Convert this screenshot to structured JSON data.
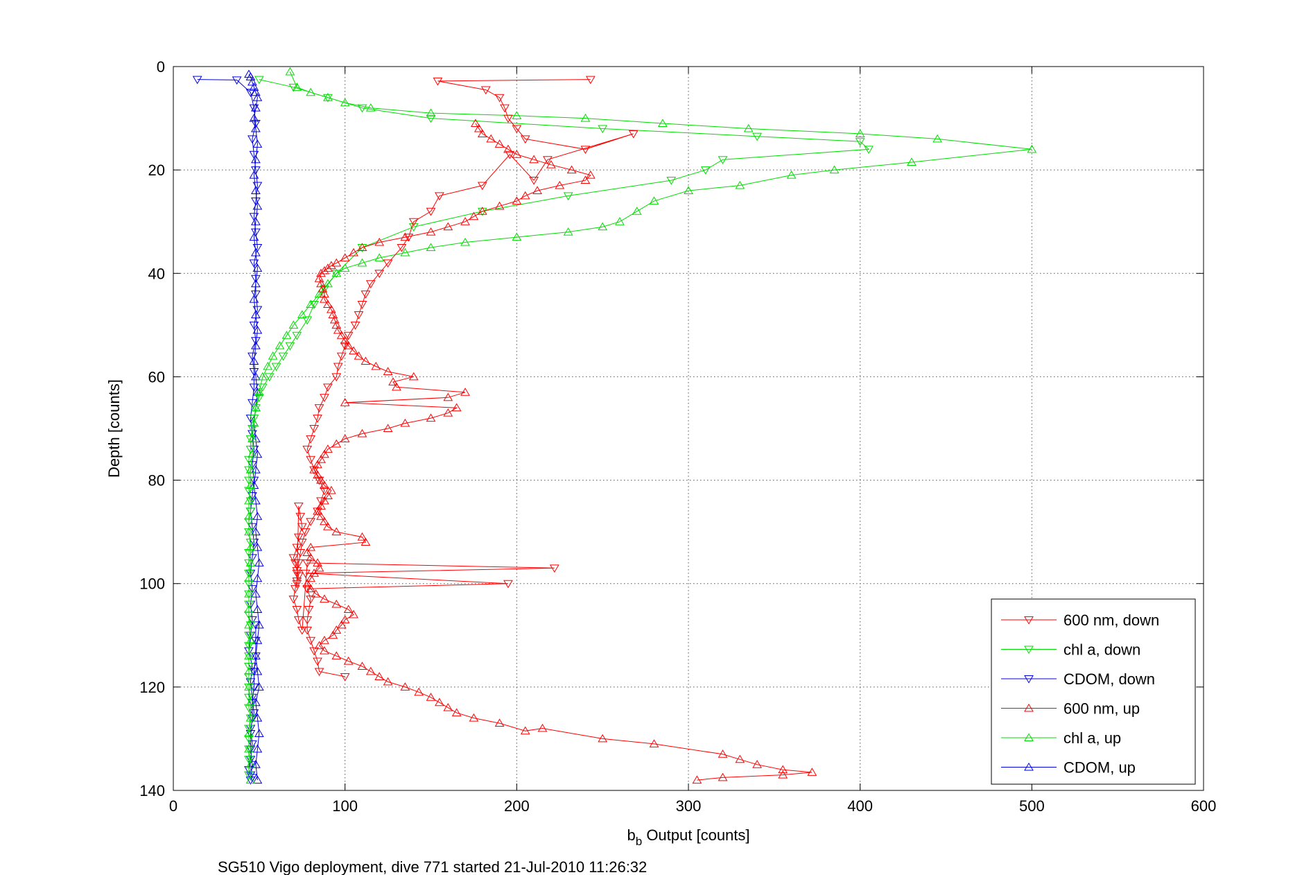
{
  "chart_data": {
    "type": "line",
    "title": "",
    "xlabel_main": "b",
    "xlabel_sub": "b",
    "xlabel_rest": " Output [counts]",
    "ylabel": "Depth [counts]",
    "caption": "SG510 Vigo deployment, dive 771 started 21-Jul-2010 11:26:32",
    "xlim": [
      0,
      600
    ],
    "ylim": [
      0,
      140
    ],
    "y_reversed": true,
    "grid": true,
    "legend_position": "bottom-right",
    "x_ticks": [
      "0",
      "100",
      "200",
      "300",
      "400",
      "500",
      "600"
    ],
    "y_ticks": [
      "0",
      "20",
      "40",
      "60",
      "80",
      "100",
      "120",
      "140"
    ],
    "series": [
      {
        "name": "600 nm, down",
        "color": "#ff0000",
        "marker": "triangle-down",
        "x": [
          243,
          154,
          182,
          190,
          193,
          195,
          200,
          205,
          240,
          268,
          218,
          210,
          196,
          180,
          155,
          150,
          140,
          137,
          133,
          125,
          120,
          115,
          112,
          110,
          108,
          106,
          102,
          100,
          98,
          96,
          95,
          90,
          88,
          85,
          84,
          82,
          80,
          78,
          80,
          82,
          85,
          88,
          86,
          84,
          80,
          77,
          75,
          74,
          73,
          72,
          72,
          73,
          74,
          75,
          73,
          72,
          70,
          71,
          72,
          73,
          72,
          71,
          70,
          72,
          73,
          75,
          78,
          222,
          77,
          195,
          78,
          80,
          79,
          78,
          78,
          80,
          82,
          84,
          85,
          100
        ],
        "y": [
          2.5,
          2.8,
          4.5,
          6,
          8,
          10,
          12,
          14,
          16,
          13,
          18,
          22,
          17,
          23,
          25,
          28,
          30,
          33,
          35,
          38,
          40,
          42,
          44,
          46,
          48,
          50,
          52,
          54,
          56,
          58,
          60,
          62,
          64,
          66,
          68,
          70,
          72,
          74,
          76,
          78,
          80,
          82,
          84,
          86,
          88,
          90,
          92,
          94,
          96,
          98,
          100,
          85,
          87,
          89,
          91,
          93,
          95,
          96,
          97.5,
          98.5,
          99.5,
          101,
          103,
          105,
          107,
          109,
          96,
          97,
          98,
          100,
          101,
          103,
          105,
          107,
          109,
          111,
          113,
          115,
          117,
          118
        ]
      },
      {
        "name": "chl a, down",
        "color": "#00dd00",
        "marker": "triangle-down",
        "x": [
          50,
          70,
          90,
          110,
          150,
          250,
          340,
          400,
          405,
          320,
          310,
          290,
          230,
          180,
          140,
          110,
          95,
          88,
          82,
          78,
          72,
          68,
          64,
          60,
          56,
          52,
          50,
          48,
          47,
          46,
          45,
          45,
          44,
          44,
          44,
          44,
          45,
          45,
          44,
          44,
          45,
          44,
          44,
          44,
          44,
          44,
          44,
          44,
          45,
          44,
          44,
          44,
          44,
          44,
          44,
          44,
          44,
          45,
          44,
          44,
          44,
          44,
          44
        ],
        "y": [
          2.5,
          4,
          6,
          8,
          10,
          12,
          13.5,
          14.5,
          16,
          18,
          20,
          22,
          25,
          28,
          31,
          35,
          40,
          43,
          46,
          49,
          52,
          54,
          56,
          58,
          60,
          62,
          64,
          66,
          68,
          70,
          72,
          74,
          76,
          78,
          80,
          82,
          84,
          86,
          88,
          90,
          92,
          94,
          96,
          98,
          100,
          102,
          104,
          106,
          108,
          110,
          112,
          114,
          116,
          118,
          120,
          122,
          124,
          126,
          128,
          130,
          132,
          134,
          137
        ]
      },
      {
        "name": "CDOM, down",
        "color": "#0000dd",
        "marker": "triangle-down",
        "x": [
          14,
          37,
          45,
          47,
          48,
          46,
          47,
          48,
          49,
          48,
          47,
          48,
          49,
          47,
          48,
          48,
          49,
          47,
          48,
          46,
          47,
          47,
          46,
          45,
          46,
          47,
          46,
          47,
          46,
          45,
          46,
          47,
          46,
          45,
          46,
          45,
          46,
          45,
          44,
          46,
          45,
          46,
          47,
          45,
          46,
          45,
          44,
          45,
          46,
          45,
          46,
          45,
          45,
          46,
          46,
          47,
          47,
          48,
          48,
          48
        ],
        "y": [
          2.5,
          2.6,
          5,
          8,
          11,
          14,
          17,
          20,
          23,
          26,
          29,
          32,
          35,
          38,
          41,
          44,
          47,
          50,
          53,
          56,
          59,
          62,
          65,
          68,
          71,
          74,
          77,
          80,
          83,
          86,
          89,
          92,
          95,
          98,
          101,
          104,
          107,
          110,
          113,
          116,
          119,
          122,
          125,
          128,
          131,
          134,
          136,
          137,
          137.5,
          138,
          135,
          132,
          129,
          126,
          123,
          120,
          117,
          114,
          111,
          108
        ]
      },
      {
        "name": "600 nm, up",
        "color": "#ff0000",
        "marker": "triangle-up",
        "x": [
          305,
          320,
          355,
          372,
          355,
          340,
          330,
          320,
          280,
          250,
          215,
          205,
          190,
          175,
          165,
          160,
          155,
          150,
          143,
          135,
          125,
          120,
          115,
          110,
          102,
          95,
          88,
          85,
          88,
          93,
          95,
          98,
          100,
          105,
          102,
          95,
          88,
          83,
          80,
          78,
          80,
          82,
          85,
          84,
          80,
          78,
          80,
          112,
          110,
          95,
          90,
          88,
          86,
          84,
          86,
          88,
          90,
          92,
          88,
          86,
          84,
          82,
          84,
          86,
          88,
          90,
          95,
          100,
          110,
          125,
          135,
          150,
          160,
          165,
          100,
          160,
          170,
          130,
          128,
          140,
          125,
          118,
          112,
          108,
          105,
          102,
          100,
          98,
          96,
          95,
          94,
          93,
          92,
          90,
          88,
          88,
          87,
          86,
          85,
          86,
          88,
          90,
          92,
          95,
          100,
          105,
          110,
          120,
          135,
          150,
          160,
          170,
          175,
          180,
          190,
          200,
          205,
          212,
          225,
          240,
          243,
          232,
          220,
          210,
          200,
          195,
          190,
          185,
          180,
          178,
          176
        ],
        "y": [
          138,
          137.5,
          137,
          136.5,
          136,
          135,
          134,
          133,
          131,
          130,
          128,
          128.5,
          127,
          126,
          125,
          124,
          123,
          122,
          121,
          120,
          119,
          118,
          117,
          116,
          115,
          114,
          113,
          112,
          111,
          110,
          109,
          108,
          107,
          106,
          105,
          104,
          103,
          102,
          101,
          100,
          99,
          98,
          97,
          96,
          95,
          94,
          93,
          92,
          91,
          90,
          89,
          88,
          87,
          86,
          85,
          84,
          83,
          82,
          81,
          80,
          79,
          78,
          77,
          76,
          75,
          74,
          73,
          72,
          71,
          70,
          69,
          68,
          67,
          66,
          65,
          64,
          63,
          62,
          61,
          60,
          59,
          58,
          57,
          56,
          55,
          54,
          53,
          52,
          51,
          50,
          49,
          48,
          47,
          46,
          45,
          44,
          43,
          42,
          41,
          40,
          39.5,
          39,
          38.5,
          38,
          37,
          36,
          35,
          34,
          33,
          32,
          31,
          30,
          29,
          28,
          27,
          26,
          25,
          24,
          23,
          22,
          21,
          20,
          19,
          18,
          17,
          16,
          15,
          14,
          13,
          12,
          11
        ]
      },
      {
        "name": "chl a, up",
        "color": "#00dd00",
        "marker": "triangle-up",
        "x": [
          45,
          45,
          44,
          44,
          45,
          45,
          44,
          44,
          44,
          45,
          44,
          44,
          44,
          44,
          45,
          45,
          44,
          44,
          44,
          45,
          45,
          46,
          46,
          47,
          48,
          50,
          52,
          55,
          58,
          62,
          66,
          70,
          75,
          80,
          85,
          90,
          95,
          100,
          110,
          120,
          135,
          150,
          170,
          200,
          230,
          250,
          260,
          270,
          280,
          300,
          330,
          360,
          385,
          430,
          500,
          445,
          400,
          335,
          285,
          240,
          200,
          150,
          115,
          100,
          90,
          80,
          72,
          68
        ],
        "y": [
          138,
          135,
          132,
          129,
          126,
          123,
          120,
          117,
          114,
          111,
          108,
          105,
          102,
          99,
          96,
          93,
          90,
          87,
          84,
          81,
          78,
          75,
          72,
          69,
          66,
          63,
          60,
          58,
          56,
          54,
          52,
          50,
          48,
          46,
          44,
          42,
          40,
          39,
          38,
          37,
          36,
          35,
          34,
          33,
          32,
          31,
          30,
          28,
          26,
          24,
          23,
          21,
          20,
          18.5,
          16,
          14,
          13,
          12,
          11,
          10,
          9.5,
          9,
          8,
          7,
          6,
          5,
          4,
          1
        ]
      },
      {
        "name": "CDOM, up",
        "color": "#0000dd",
        "marker": "triangle-up",
        "x": [
          49,
          48,
          49,
          50,
          49,
          48,
          50,
          49,
          48,
          49,
          50,
          49,
          48,
          49,
          50,
          49,
          48,
          49,
          48,
          47,
          48,
          49,
          48,
          47,
          48,
          49,
          48,
          47,
          48,
          49,
          48,
          47,
          48,
          49,
          48,
          47,
          48,
          49,
          48,
          47,
          48,
          49,
          48,
          47,
          48,
          49,
          48,
          47,
          46,
          45,
          44
        ],
        "y": [
          138,
          135,
          132,
          129,
          126,
          123,
          120,
          117,
          114,
          111,
          108,
          105,
          102,
          99,
          96,
          93,
          90,
          87,
          84,
          81,
          78,
          75,
          72,
          69,
          66,
          63,
          60,
          57,
          54,
          51,
          48,
          45,
          42,
          39,
          36,
          33,
          30,
          27,
          24,
          21,
          18,
          15,
          12,
          10,
          8,
          6,
          5,
          4,
          3,
          2,
          1.5
        ]
      }
    ]
  }
}
